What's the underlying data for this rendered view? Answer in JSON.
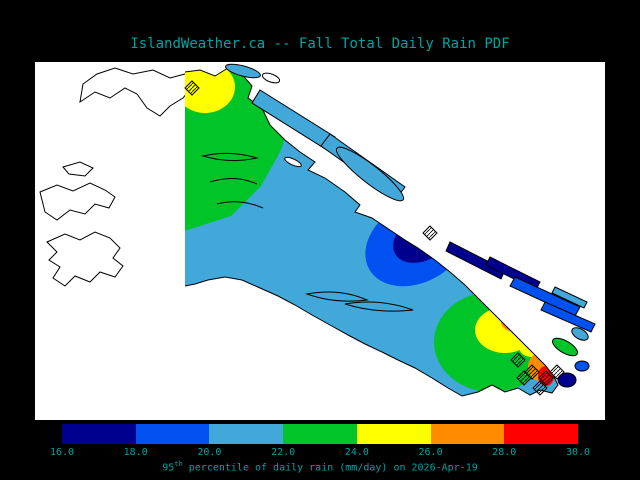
{
  "title": "IslandWeather.ca -- Fall Total Daily Rain PDF",
  "caption": {
    "base": "95",
    "sup": "th",
    "rest": " percentile of daily rain (mm/day) on 2026-Apr-19"
  },
  "colors": {
    "background": "#000000",
    "map_background": "#ffffff",
    "coastline": "#000000",
    "text": "#00a3a3",
    "palette": {
      "navy": "#00008f",
      "blue": "#0051f0",
      "cyan": "#41a8d9",
      "green": "#00c428",
      "yellow": "#ffff00",
      "orange": "#ff8c00",
      "red": "#ff0000"
    }
  },
  "chart_data": {
    "type": "heatmap",
    "title": "IslandWeather.ca -- Fall Total Daily Rain PDF",
    "variable": "95th percentile of daily rain",
    "units": "mm/day",
    "date": "2026-Apr-19",
    "region_shown": "Vancouver Island and surrounding coast",
    "colorbar": {
      "range": [
        16.0,
        30.0
      ],
      "tick_labels": [
        "16.0",
        "18.0",
        "20.0",
        "22.0",
        "24.0",
        "26.0",
        "28.0",
        "30.0"
      ],
      "segments": [
        {
          "from": 16,
          "to": 18,
          "color_key": "navy"
        },
        {
          "from": 18,
          "to": 20,
          "color_key": "blue"
        },
        {
          "from": 20,
          "to": 22,
          "color_key": "cyan"
        },
        {
          "from": 22,
          "to": 24,
          "color_key": "green"
        },
        {
          "from": 24,
          "to": 26,
          "color_key": "yellow"
        },
        {
          "from": 26,
          "to": 28,
          "color_key": "orange"
        },
        {
          "from": 28,
          "to": 30,
          "color_key": "red"
        }
      ]
    },
    "map_regions": [
      {
        "name": "vancouver-island-body",
        "value_range": [
          20,
          22
        ],
        "color_key": "cyan"
      },
      {
        "name": "north-island",
        "value_range": [
          22,
          24
        ],
        "color_key": "green"
      },
      {
        "name": "north-island-core",
        "value_range": [
          24,
          26
        ],
        "color_key": "yellow"
      },
      {
        "name": "east-coast-low",
        "value_range": [
          18,
          20
        ],
        "color_key": "blue"
      },
      {
        "name": "east-coast-low-core",
        "value_range": [
          16,
          18
        ],
        "color_key": "navy"
      },
      {
        "name": "south-island",
        "value_range": [
          22,
          24
        ],
        "color_key": "green"
      },
      {
        "name": "south-island-high",
        "value_range": [
          24,
          26
        ],
        "color_key": "yellow"
      },
      {
        "name": "south-island-higher",
        "value_range": [
          26,
          28
        ],
        "color_key": "orange"
      },
      {
        "name": "south-island-max",
        "value_range": [
          28,
          30
        ],
        "color_key": "red"
      }
    ]
  }
}
